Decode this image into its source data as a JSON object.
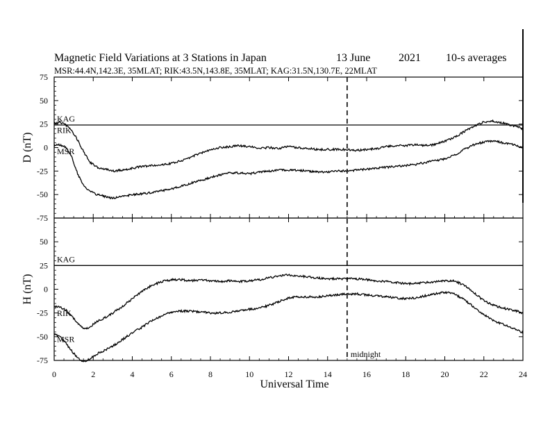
{
  "header": {
    "title": "Magnetic Field Variations at 3 Stations in Japan",
    "date": "13 June",
    "year": "2021",
    "averaging": "10-s averages",
    "stations": "MSR:44.4N,142.3E, 35MLAT;  RIK:43.5N,143.8E, 35MLAT;  KAG:31.5N,130.7E, 22MLAT"
  },
  "chart_data": [
    {
      "type": "line",
      "panel": "D",
      "ylabel": "D (nT)",
      "xlabel": "",
      "ylim": [
        -75,
        75
      ],
      "yticks": [
        -75,
        -50,
        -25,
        0,
        25,
        50,
        75
      ],
      "xlim": [
        0,
        24
      ],
      "series": [
        {
          "name": "KAG",
          "x": [
            0,
            24
          ],
          "y": [
            24,
            24
          ]
        },
        {
          "name": "RIK",
          "x": [
            0,
            0.3,
            0.6,
            0.9,
            1.2,
            1.5,
            1.8,
            2.2,
            2.6,
            3.0,
            3.5,
            4.0,
            4.5,
            5.0,
            5.5,
            6.0,
            6.5,
            7.0,
            7.5,
            8.0,
            8.5,
            9.0,
            9.5,
            10.0,
            10.5,
            11.0,
            11.5,
            12.0,
            12.5,
            13.0,
            13.5,
            14.0,
            14.5,
            15.0,
            15.5,
            16.0,
            16.5,
            17.0,
            17.5,
            18.0,
            18.5,
            19.0,
            19.5,
            20.0,
            20.5,
            21.0,
            21.5,
            22.0,
            22.5,
            23.0,
            23.5,
            24.0
          ],
          "y": [
            26,
            27,
            24,
            18,
            8,
            -4,
            -15,
            -21,
            -23,
            -25,
            -24,
            -22,
            -20,
            -19,
            -18,
            -17,
            -14,
            -10,
            -6,
            -2,
            0,
            1,
            2,
            1,
            -1,
            0,
            -1,
            1,
            0,
            -1,
            -2,
            -2,
            -2,
            -2,
            -3,
            -2,
            -1,
            1,
            2,
            2,
            3,
            2,
            3,
            7,
            11,
            17,
            23,
            27,
            28,
            26,
            23,
            20
          ]
        },
        {
          "name": "MSR",
          "x": [
            0,
            0.3,
            0.6,
            0.9,
            1.2,
            1.5,
            1.8,
            2.2,
            2.6,
            3.0,
            3.5,
            4.0,
            4.5,
            5.0,
            5.5,
            6.0,
            6.5,
            7.0,
            7.5,
            8.0,
            8.5,
            9.0,
            9.5,
            10.0,
            10.5,
            11.0,
            11.5,
            12.0,
            12.5,
            13.0,
            13.5,
            14.0,
            14.5,
            15.0,
            15.5,
            16.0,
            16.5,
            17.0,
            17.5,
            18.0,
            18.5,
            19.0,
            19.5,
            20.0,
            20.5,
            21.0,
            21.5,
            22.0,
            22.5,
            23.0,
            23.5,
            24.0
          ],
          "y": [
            2,
            3,
            0,
            -10,
            -28,
            -40,
            -46,
            -50,
            -52,
            -54,
            -52,
            -50,
            -49,
            -48,
            -46,
            -44,
            -41,
            -38,
            -35,
            -32,
            -29,
            -27,
            -27,
            -28,
            -26,
            -25,
            -24,
            -24,
            -24,
            -25,
            -26,
            -26,
            -25,
            -25,
            -24,
            -23,
            -22,
            -21,
            -20,
            -19,
            -18,
            -16,
            -14,
            -12,
            -8,
            -2,
            3,
            6,
            7,
            5,
            3,
            0
          ]
        }
      ]
    },
    {
      "type": "line",
      "panel": "H",
      "ylabel": "H (nT)",
      "xlabel": "Universal Time",
      "ylim": [
        -75,
        75
      ],
      "yticks": [
        -75,
        -50,
        -25,
        0,
        25,
        50,
        75
      ],
      "xlim": [
        0,
        24
      ],
      "xticks": [
        0,
        2,
        4,
        6,
        8,
        10,
        12,
        14,
        16,
        18,
        20,
        22,
        24
      ],
      "series": [
        {
          "name": "KAG",
          "x": [
            0,
            24
          ],
          "y": [
            25,
            25
          ]
        },
        {
          "name": "RIK",
          "x": [
            0,
            0.3,
            0.6,
            0.9,
            1.2,
            1.5,
            1.8,
            2.2,
            2.6,
            3.0,
            3.5,
            4.0,
            4.5,
            5.0,
            5.5,
            6.0,
            6.5,
            7.0,
            7.5,
            8.0,
            8.5,
            9.0,
            9.5,
            10.0,
            10.5,
            11.0,
            11.5,
            12.0,
            12.5,
            13.0,
            13.5,
            14.0,
            14.5,
            15.0,
            15.5,
            16.0,
            16.5,
            17.0,
            17.5,
            18.0,
            18.5,
            19.0,
            19.5,
            20.0,
            20.5,
            21.0,
            21.5,
            22.0,
            22.5,
            23.0,
            23.5,
            24.0
          ],
          "y": [
            -18,
            -19,
            -22,
            -28,
            -36,
            -42,
            -40,
            -34,
            -30,
            -25,
            -18,
            -10,
            -2,
            4,
            8,
            10,
            10,
            9,
            10,
            9,
            8,
            9,
            8,
            9,
            10,
            12,
            14,
            15,
            14,
            13,
            12,
            11,
            11,
            11,
            11,
            10,
            9,
            8,
            7,
            6,
            6,
            7,
            8,
            9,
            9,
            4,
            -4,
            -12,
            -17,
            -20,
            -22,
            -25
          ]
        },
        {
          "name": "MSR",
          "x": [
            0,
            0.3,
            0.6,
            0.9,
            1.2,
            1.5,
            1.8,
            2.2,
            2.6,
            3.0,
            3.5,
            4.0,
            4.5,
            5.0,
            5.5,
            6.0,
            6.5,
            7.0,
            7.5,
            8.0,
            8.5,
            9.0,
            9.5,
            10.0,
            10.5,
            11.0,
            11.5,
            12.0,
            12.5,
            13.0,
            13.5,
            14.0,
            14.5,
            15.0,
            15.5,
            16.0,
            16.5,
            17.0,
            17.5,
            18.0,
            18.5,
            19.0,
            19.5,
            20.0,
            20.5,
            21.0,
            21.5,
            22.0,
            22.5,
            23.0,
            23.5,
            24.0
          ],
          "y": [
            -47,
            -50,
            -57,
            -65,
            -72,
            -76,
            -74,
            -68,
            -64,
            -60,
            -53,
            -46,
            -40,
            -33,
            -28,
            -24,
            -23,
            -23,
            -24,
            -25,
            -25,
            -24,
            -23,
            -21,
            -20,
            -17,
            -13,
            -9,
            -8,
            -8,
            -8,
            -7,
            -6,
            -5,
            -5,
            -6,
            -7,
            -8,
            -9,
            -10,
            -9,
            -7,
            -5,
            -3,
            -5,
            -11,
            -19,
            -27,
            -33,
            -37,
            -41,
            -46
          ]
        }
      ]
    }
  ],
  "annotations": {
    "midnight_label": "midnight",
    "midnight_ut": 15
  }
}
